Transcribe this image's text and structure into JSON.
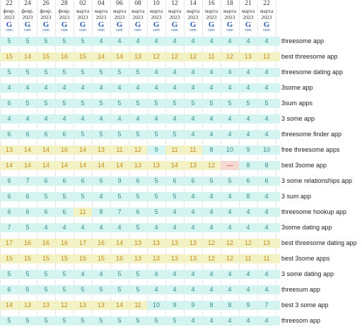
{
  "columns": [
    {
      "day": "22",
      "month": "февр.",
      "year": "2023",
      "engine": "G",
      "tld": "com"
    },
    {
      "day": "24",
      "month": "февр.",
      "year": "2023",
      "engine": "G",
      "tld": "com"
    },
    {
      "day": "26",
      "month": "февр.",
      "year": "2023",
      "engine": "G",
      "tld": "com"
    },
    {
      "day": "28",
      "month": "февр.",
      "year": "2023",
      "engine": "G",
      "tld": "com"
    },
    {
      "day": "02",
      "month": "марта",
      "year": "2023",
      "engine": "G",
      "tld": "com"
    },
    {
      "day": "04",
      "month": "марта",
      "year": "2023",
      "engine": "G",
      "tld": "com"
    },
    {
      "day": "06",
      "month": "марта",
      "year": "2023",
      "engine": "G",
      "tld": "com"
    },
    {
      "day": "08",
      "month": "марта",
      "year": "2023",
      "engine": "G",
      "tld": "com"
    },
    {
      "day": "10",
      "month": "марта",
      "year": "2023",
      "engine": "G",
      "tld": "com"
    },
    {
      "day": "12",
      "month": "марта",
      "year": "2023",
      "engine": "G",
      "tld": "com"
    },
    {
      "day": "14",
      "month": "марта",
      "year": "2023",
      "engine": "G",
      "tld": "com"
    },
    {
      "day": "16",
      "month": "марта",
      "year": "2023",
      "engine": "G",
      "tld": "com"
    },
    {
      "day": "18",
      "month": "марта",
      "year": "2023",
      "engine": "G",
      "tld": "com"
    },
    {
      "day": "21",
      "month": "марта",
      "year": "2023",
      "engine": "G",
      "tld": "com"
    },
    {
      "day": "22",
      "month": "марта",
      "year": "2023",
      "engine": "G",
      "tld": "com"
    }
  ],
  "colors": {
    "top5": "#d4f4f0",
    "top20": "#f3f2c4",
    "top50": "#f7d9d4",
    "top5_text": "#3a8a8a",
    "top20_text": "#c48a1a",
    "top50_text": "#c03030"
  },
  "rows": [
    {
      "keyword": "threesome app",
      "values": [
        "5",
        "5",
        "5",
        "5",
        "5",
        "4",
        "4",
        "4",
        "4",
        "4",
        "4",
        "4",
        "4",
        "4",
        "4"
      ]
    },
    {
      "keyword": "best threesome app",
      "values": [
        "15",
        "14",
        "15",
        "16",
        "15",
        "14",
        "14",
        "13",
        "12",
        "12",
        "12",
        "11",
        "12",
        "13",
        "12"
      ]
    },
    {
      "keyword": "threesome dating app",
      "values": [
        "5",
        "5",
        "5",
        "5",
        "5",
        "5",
        "5",
        "5",
        "4",
        "4",
        "4",
        "4",
        "4",
        "4",
        "4"
      ]
    },
    {
      "keyword": "3some app",
      "values": [
        "4",
        "4",
        "4",
        "4",
        "4",
        "4",
        "4",
        "4",
        "4",
        "4",
        "4",
        "4",
        "4",
        "4",
        "4"
      ]
    },
    {
      "keyword": "3sum apps",
      "values": [
        "6",
        "5",
        "5",
        "5",
        "5",
        "5",
        "5",
        "5",
        "5",
        "5",
        "5",
        "5",
        "5",
        "5",
        "5"
      ]
    },
    {
      "keyword": "3 some app",
      "values": [
        "4",
        "4",
        "4",
        "4",
        "4",
        "4",
        "4",
        "4",
        "4",
        "4",
        "4",
        "4",
        "4",
        "4",
        "4"
      ]
    },
    {
      "keyword": "threesome finder app",
      "values": [
        "6",
        "6",
        "6",
        "6",
        "5",
        "5",
        "5",
        "5",
        "5",
        "5",
        "4",
        "4",
        "4",
        "4",
        "4"
      ]
    },
    {
      "keyword": "free threesome apps",
      "values": [
        "13",
        "14",
        "14",
        "16",
        "14",
        "13",
        "11",
        "12",
        "9",
        "11",
        "11",
        "8",
        "10",
        "9",
        "10"
      ]
    },
    {
      "keyword": "best 3some app",
      "values": [
        "14",
        "14",
        "14",
        "14",
        "14",
        "14",
        "14",
        "13",
        "13",
        "14",
        "13",
        "12",
        "—",
        "8",
        "8"
      ]
    },
    {
      "keyword": "3 some relationships app",
      "values": [
        "6",
        "7",
        "6",
        "6",
        "6",
        "6",
        "9",
        "6",
        "5",
        "6",
        "6",
        "5",
        "5",
        "6",
        "6"
      ]
    },
    {
      "keyword": "3 sum app",
      "values": [
        "6",
        "6",
        "5",
        "5",
        "5",
        "4",
        "5",
        "5",
        "5",
        "5",
        "4",
        "4",
        "4",
        "8",
        "4"
      ]
    },
    {
      "keyword": "threesome hookup app",
      "values": [
        "6",
        "6",
        "6",
        "6",
        "11",
        "8",
        "7",
        "6",
        "5",
        "4",
        "4",
        "4",
        "4",
        "4",
        "4"
      ]
    },
    {
      "keyword": "3some dating app",
      "values": [
        "7",
        "5",
        "4",
        "4",
        "4",
        "4",
        "4",
        "5",
        "4",
        "4",
        "4",
        "4",
        "4",
        "4",
        "4"
      ]
    },
    {
      "keyword": "best threesome dating app",
      "values": [
        "17",
        "16",
        "16",
        "16",
        "17",
        "16",
        "14",
        "13",
        "13",
        "13",
        "13",
        "12",
        "12",
        "12",
        "13"
      ]
    },
    {
      "keyword": "best 3some apps",
      "values": [
        "15",
        "15",
        "15",
        "15",
        "15",
        "15",
        "16",
        "13",
        "13",
        "13",
        "13",
        "12",
        "12",
        "11",
        "11"
      ]
    },
    {
      "keyword": "3 some dating app",
      "values": [
        "5",
        "5",
        "5",
        "5",
        "4",
        "4",
        "5",
        "5",
        "4",
        "4",
        "4",
        "4",
        "4",
        "4",
        "4"
      ]
    },
    {
      "keyword": "threesum app",
      "values": [
        "6",
        "5",
        "5",
        "5",
        "5",
        "5",
        "5",
        "5",
        "4",
        "4",
        "4",
        "4",
        "4",
        "4",
        "4"
      ]
    },
    {
      "keyword": "best 3 some app",
      "values": [
        "14",
        "13",
        "13",
        "12",
        "13",
        "13",
        "14",
        "11",
        "10",
        "9",
        "9",
        "8",
        "8",
        "9",
        "7"
      ]
    },
    {
      "keyword": "threesom app",
      "values": [
        "5",
        "5",
        "5",
        "5",
        "5",
        "5",
        "5",
        "5",
        "5",
        "5",
        "4",
        "4",
        "4",
        "4",
        "4"
      ]
    }
  ]
}
